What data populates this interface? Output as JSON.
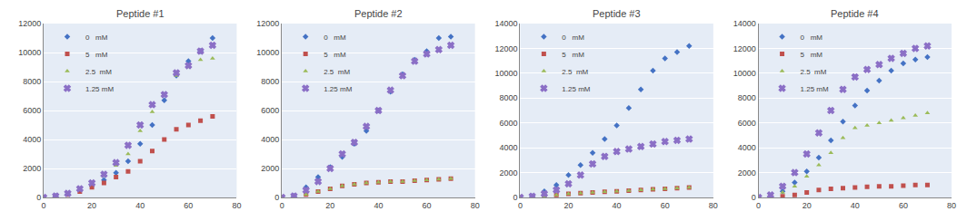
{
  "chart_data": [
    {
      "type": "scatter",
      "title": "Peptide #1",
      "x": [
        0,
        5,
        10,
        15,
        20,
        25,
        30,
        35,
        40,
        45,
        50,
        55,
        60,
        65,
        70
      ],
      "series": [
        {
          "name": "0   mM",
          "color": "#4472C4",
          "marker": "diamond",
          "values": [
            0,
            100,
            250,
            500,
            800,
            1200,
            1700,
            2500,
            3700,
            5000,
            6700,
            8400,
            9400,
            10100,
            11000
          ]
        },
        {
          "name": "5   mM",
          "color": "#C0504D",
          "marker": "square",
          "values": [
            0,
            80,
            200,
            400,
            700,
            1000,
            1400,
            1800,
            2500,
            3200,
            4000,
            4700,
            5000,
            5300,
            5600
          ]
        },
        {
          "name": "2.5  mM",
          "color": "#9BBB59",
          "marker": "triangle-up",
          "values": [
            0,
            100,
            280,
            600,
            1000,
            1500,
            2200,
            3000,
            4600,
            5900,
            7100,
            8400,
            9000,
            9500,
            9600
          ]
        },
        {
          "name": "1.25 mM",
          "color": "#8B6FC6",
          "marker": "x",
          "values": [
            0,
            100,
            280,
            600,
            1000,
            1600,
            2400,
            3600,
            5000,
            6400,
            7100,
            8600,
            9100,
            10100,
            10500
          ]
        }
      ],
      "xlim": [
        0,
        80
      ],
      "xticks": [
        0,
        20,
        40,
        60,
        80
      ],
      "ylim": [
        0,
        12000
      ],
      "yticks": [
        0,
        2000,
        4000,
        6000,
        8000,
        10000,
        12000
      ],
      "grid": true,
      "legend": "upper left"
    },
    {
      "type": "scatter",
      "title": "Peptide #2",
      "x": [
        0,
        5,
        10,
        15,
        20,
        25,
        30,
        35,
        40,
        45,
        50,
        55,
        60,
        65,
        70
      ],
      "series": [
        {
          "name": "0   mM",
          "color": "#4472C4",
          "marker": "diamond",
          "values": [
            0,
            100,
            700,
            1400,
            2100,
            2800,
            3700,
            4600,
            6000,
            7300,
            8500,
            9500,
            10100,
            11000,
            11100
          ]
        },
        {
          "name": "5   mM",
          "color": "#C0504D",
          "marker": "square",
          "values": [
            0,
            50,
            200,
            400,
            600,
            800,
            900,
            1000,
            1050,
            1100,
            1100,
            1150,
            1200,
            1250,
            1300
          ]
        },
        {
          "name": "2.5  mM",
          "color": "#9BBB59",
          "marker": "triangle-up",
          "values": [
            0,
            50,
            200,
            400,
            600,
            800,
            900,
            1000,
            1050,
            1100,
            1100,
            1150,
            1200,
            1250,
            1300
          ]
        },
        {
          "name": "1.25 mM",
          "color": "#8B6FC6",
          "marker": "x",
          "values": [
            0,
            100,
            500,
            1100,
            2000,
            3000,
            3800,
            4900,
            6000,
            7400,
            8400,
            9400,
            9900,
            10200,
            10500
          ]
        }
      ],
      "xlim": [
        0,
        80
      ],
      "xticks": [
        0,
        20,
        40,
        60,
        80
      ],
      "ylim": [
        0,
        12000
      ],
      "yticks": [
        0,
        2000,
        4000,
        6000,
        8000,
        10000,
        12000
      ],
      "grid": true,
      "legend": "upper left"
    },
    {
      "type": "scatter",
      "title": "Peptide #3",
      "x": [
        0,
        5,
        10,
        15,
        20,
        25,
        30,
        35,
        40,
        45,
        50,
        55,
        60,
        65,
        70
      ],
      "series": [
        {
          "name": "0   mM",
          "color": "#4472C4",
          "marker": "diamond",
          "values": [
            0,
            100,
            500,
            1000,
            1800,
            2600,
            3600,
            4700,
            5800,
            7200,
            8700,
            10200,
            11200,
            11700,
            12200
          ]
        },
        {
          "name": "5   mM",
          "color": "#C0504D",
          "marker": "square",
          "values": [
            0,
            50,
            100,
            200,
            300,
            350,
            400,
            450,
            500,
            550,
            600,
            650,
            700,
            750,
            800
          ]
        },
        {
          "name": "2.5  mM",
          "color": "#9BBB59",
          "marker": "triangle-up",
          "values": [
            0,
            50,
            100,
            200,
            300,
            350,
            400,
            450,
            500,
            550,
            600,
            650,
            700,
            750,
            800
          ]
        },
        {
          "name": "1.25 mM",
          "color": "#8B6FC6",
          "marker": "x",
          "values": [
            0,
            100,
            300,
            600,
            1100,
            1800,
            2700,
            3300,
            3700,
            3900,
            4100,
            4300,
            4500,
            4600,
            4700
          ]
        }
      ],
      "xlim": [
        0,
        80
      ],
      "xticks": [
        0,
        20,
        40,
        60,
        80
      ],
      "ylim": [
        0,
        14000
      ],
      "yticks": [
        0,
        2000,
        4000,
        6000,
        8000,
        10000,
        12000,
        14000
      ],
      "grid": true,
      "legend": "upper left"
    },
    {
      "type": "scatter",
      "title": "Peptide #4",
      "x": [
        0,
        5,
        10,
        15,
        20,
        25,
        30,
        35,
        40,
        45,
        50,
        55,
        60,
        65,
        70
      ],
      "series": [
        {
          "name": "0   mM",
          "color": "#4472C4",
          "marker": "diamond",
          "values": [
            0,
            100,
            500,
            1200,
            2100,
            3200,
            4600,
            6100,
            7400,
            8600,
            9400,
            10200,
            10800,
            11100,
            11300
          ]
        },
        {
          "name": "5   mM",
          "color": "#C0504D",
          "marker": "square",
          "values": [
            0,
            50,
            100,
            200,
            400,
            600,
            700,
            750,
            800,
            850,
            900,
            900,
            950,
            1000,
            1000
          ]
        },
        {
          "name": "2.5  mM",
          "color": "#9BBB59",
          "marker": "triangle-up",
          "values": [
            0,
            100,
            400,
            900,
            1700,
            2600,
            3600,
            4800,
            5600,
            5800,
            6000,
            6200,
            6400,
            6600,
            6800
          ]
        },
        {
          "name": "1.25 mM",
          "color": "#8B6FC6",
          "marker": "x",
          "values": [
            0,
            200,
            900,
            2000,
            3500,
            5200,
            7000,
            8700,
            9700,
            10300,
            10700,
            11200,
            11600,
            12000,
            12200
          ]
        }
      ],
      "xlim": [
        0,
        80
      ],
      "xticks": [
        0,
        20,
        40,
        60,
        80
      ],
      "ylim": [
        0,
        14000
      ],
      "yticks": [
        0,
        2000,
        4000,
        6000,
        8000,
        10000,
        12000,
        14000
      ],
      "grid": true,
      "legend": "upper left"
    }
  ]
}
